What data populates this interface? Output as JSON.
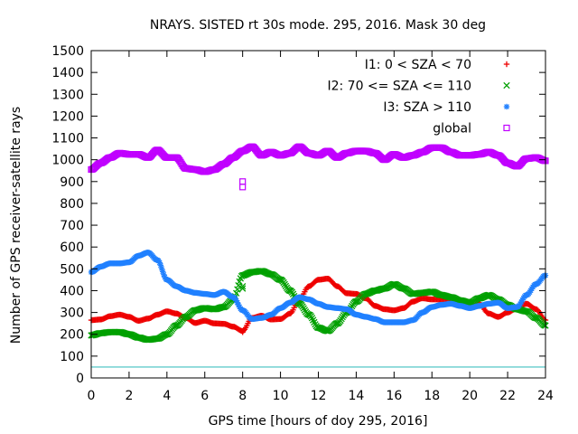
{
  "chart_data": {
    "type": "scatter",
    "title": "NRAYS. SISTED rt 30s mode. 295, 2016. Mask 30 deg",
    "xlabel": "GPS time [hours of doy 295, 2016]",
    "ylabel": "Number of GPS receiver-satellite rays",
    "xlim": [
      0,
      24
    ],
    "ylim": [
      0,
      1500
    ],
    "xticks": [
      "0",
      "2",
      "4",
      "6",
      "8",
      "10",
      "12",
      "14",
      "16",
      "18",
      "20",
      "22",
      "24"
    ],
    "yticks": [
      "0",
      "100",
      "200",
      "300",
      "400",
      "500",
      "600",
      "700",
      "800",
      "900",
      "1000",
      "1100",
      "1200",
      "1300",
      "1400",
      "1500"
    ],
    "legend_position": "top-right",
    "reference_line": {
      "y": 50,
      "color": "#40c0c0"
    },
    "series": [
      {
        "name": "I1: 0 < SZA < 70",
        "marker": "+",
        "color": "#ee0000",
        "x": [
          0,
          0.5,
          1,
          1.5,
          2,
          2.5,
          3,
          3.5,
          4,
          4.5,
          5,
          5.5,
          6,
          6.5,
          7,
          7.5,
          8,
          8.5,
          9,
          9.5,
          10,
          10.5,
          11,
          11.5,
          12,
          12.5,
          13,
          13.5,
          14,
          14.5,
          15,
          15.5,
          16,
          16.5,
          17,
          17.5,
          18,
          18.5,
          19,
          19.5,
          20,
          20.5,
          21,
          21.5,
          22,
          22.5,
          23,
          23.5,
          24
        ],
        "y": [
          265,
          268,
          283,
          290,
          280,
          262,
          272,
          290,
          305,
          295,
          275,
          252,
          262,
          250,
          248,
          235,
          215,
          275,
          285,
          268,
          270,
          295,
          360,
          420,
          450,
          455,
          420,
          388,
          385,
          365,
          330,
          315,
          310,
          320,
          350,
          365,
          360,
          360,
          365,
          355,
          325,
          340,
          295,
          280,
          300,
          320,
          340,
          315,
          265
        ]
      },
      {
        "name": "I2: 70 <= SZA <= 110",
        "marker": "x",
        "color": "#00a000",
        "x": [
          0,
          0.5,
          1,
          1.5,
          2,
          2.5,
          3,
          3.5,
          4,
          4.5,
          5,
          5.5,
          6,
          6.5,
          7,
          7.5,
          8,
          8.5,
          9,
          9.5,
          10,
          10.5,
          11,
          11.5,
          12,
          12.5,
          13,
          13.5,
          14,
          14.5,
          15,
          15.5,
          16,
          16.5,
          17,
          17.5,
          18,
          18.5,
          19,
          19.5,
          20,
          20.5,
          21,
          21.5,
          22,
          22.5,
          23,
          23.5,
          24
        ],
        "y": [
          195,
          205,
          210,
          210,
          200,
          185,
          175,
          180,
          200,
          240,
          280,
          310,
          320,
          315,
          325,
          360,
          470,
          485,
          490,
          475,
          450,
          400,
          340,
          290,
          230,
          215,
          250,
          300,
          350,
          385,
          400,
          410,
          430,
          410,
          385,
          390,
          395,
          380,
          370,
          355,
          345,
          365,
          380,
          360,
          335,
          315,
          305,
          275,
          240
        ]
      },
      {
        "name": "I3: SZA > 110",
        "marker": "*",
        "color": "#2080ff",
        "x": [
          0,
          0.5,
          1,
          1.5,
          2,
          2.5,
          3,
          3.5,
          4,
          4.5,
          5,
          5.5,
          6,
          6.5,
          7,
          7.5,
          8,
          8.5,
          9,
          9.5,
          10,
          10.5,
          11,
          11.5,
          12,
          12.5,
          13,
          13.5,
          14,
          14.5,
          15,
          15.5,
          16,
          16.5,
          17,
          17.5,
          18,
          18.5,
          19,
          19.5,
          20,
          20.5,
          21,
          21.5,
          22,
          22.5,
          23,
          23.5,
          24
        ],
        "y": [
          485,
          510,
          525,
          525,
          530,
          560,
          575,
          540,
          450,
          420,
          400,
          390,
          385,
          380,
          395,
          370,
          310,
          270,
          275,
          290,
          320,
          345,
          370,
          360,
          340,
          325,
          320,
          315,
          290,
          280,
          270,
          255,
          255,
          255,
          265,
          300,
          325,
          335,
          340,
          330,
          320,
          330,
          340,
          345,
          320,
          325,
          380,
          430,
          470
        ]
      },
      {
        "name": "global",
        "marker": "square",
        "color": "#c000ff",
        "x": [
          0,
          0.5,
          1,
          1.5,
          2,
          2.5,
          3,
          3.5,
          4,
          4.5,
          5,
          5.5,
          6,
          6.5,
          7,
          7.5,
          8,
          8.5,
          9,
          9.5,
          10,
          10.5,
          11,
          11.5,
          12,
          12.5,
          13,
          13.5,
          14,
          14.5,
          15,
          15.5,
          16,
          16.5,
          17,
          17.5,
          18,
          18.5,
          19,
          19.5,
          20,
          20.5,
          21,
          21.5,
          22,
          22.5,
          23,
          23.5,
          24
        ],
        "y": [
          955,
          985,
          1010,
          1030,
          1025,
          1025,
          1010,
          1045,
          1010,
          1010,
          960,
          955,
          945,
          955,
          980,
          1010,
          1040,
          1060,
          1020,
          1035,
          1020,
          1030,
          1060,
          1030,
          1020,
          1040,
          1010,
          1030,
          1040,
          1040,
          1030,
          1000,
          1025,
          1010,
          1020,
          1035,
          1055,
          1055,
          1035,
          1020,
          1020,
          1025,
          1035,
          1020,
          985,
          970,
          1005,
          1010,
          995
        ]
      }
    ],
    "outliers": [
      {
        "series": "global",
        "x": 8,
        "y": 875
      },
      {
        "series": "global",
        "x": 8,
        "y": 900
      },
      {
        "series": "I2: 70 <= SZA <= 110",
        "x": 8,
        "y": 410
      },
      {
        "series": "I2: 70 <= SZA <= 110",
        "x": 8,
        "y": 420
      },
      {
        "series": "I1: 0 < SZA < 70",
        "x": 8,
        "y": 210
      }
    ]
  }
}
